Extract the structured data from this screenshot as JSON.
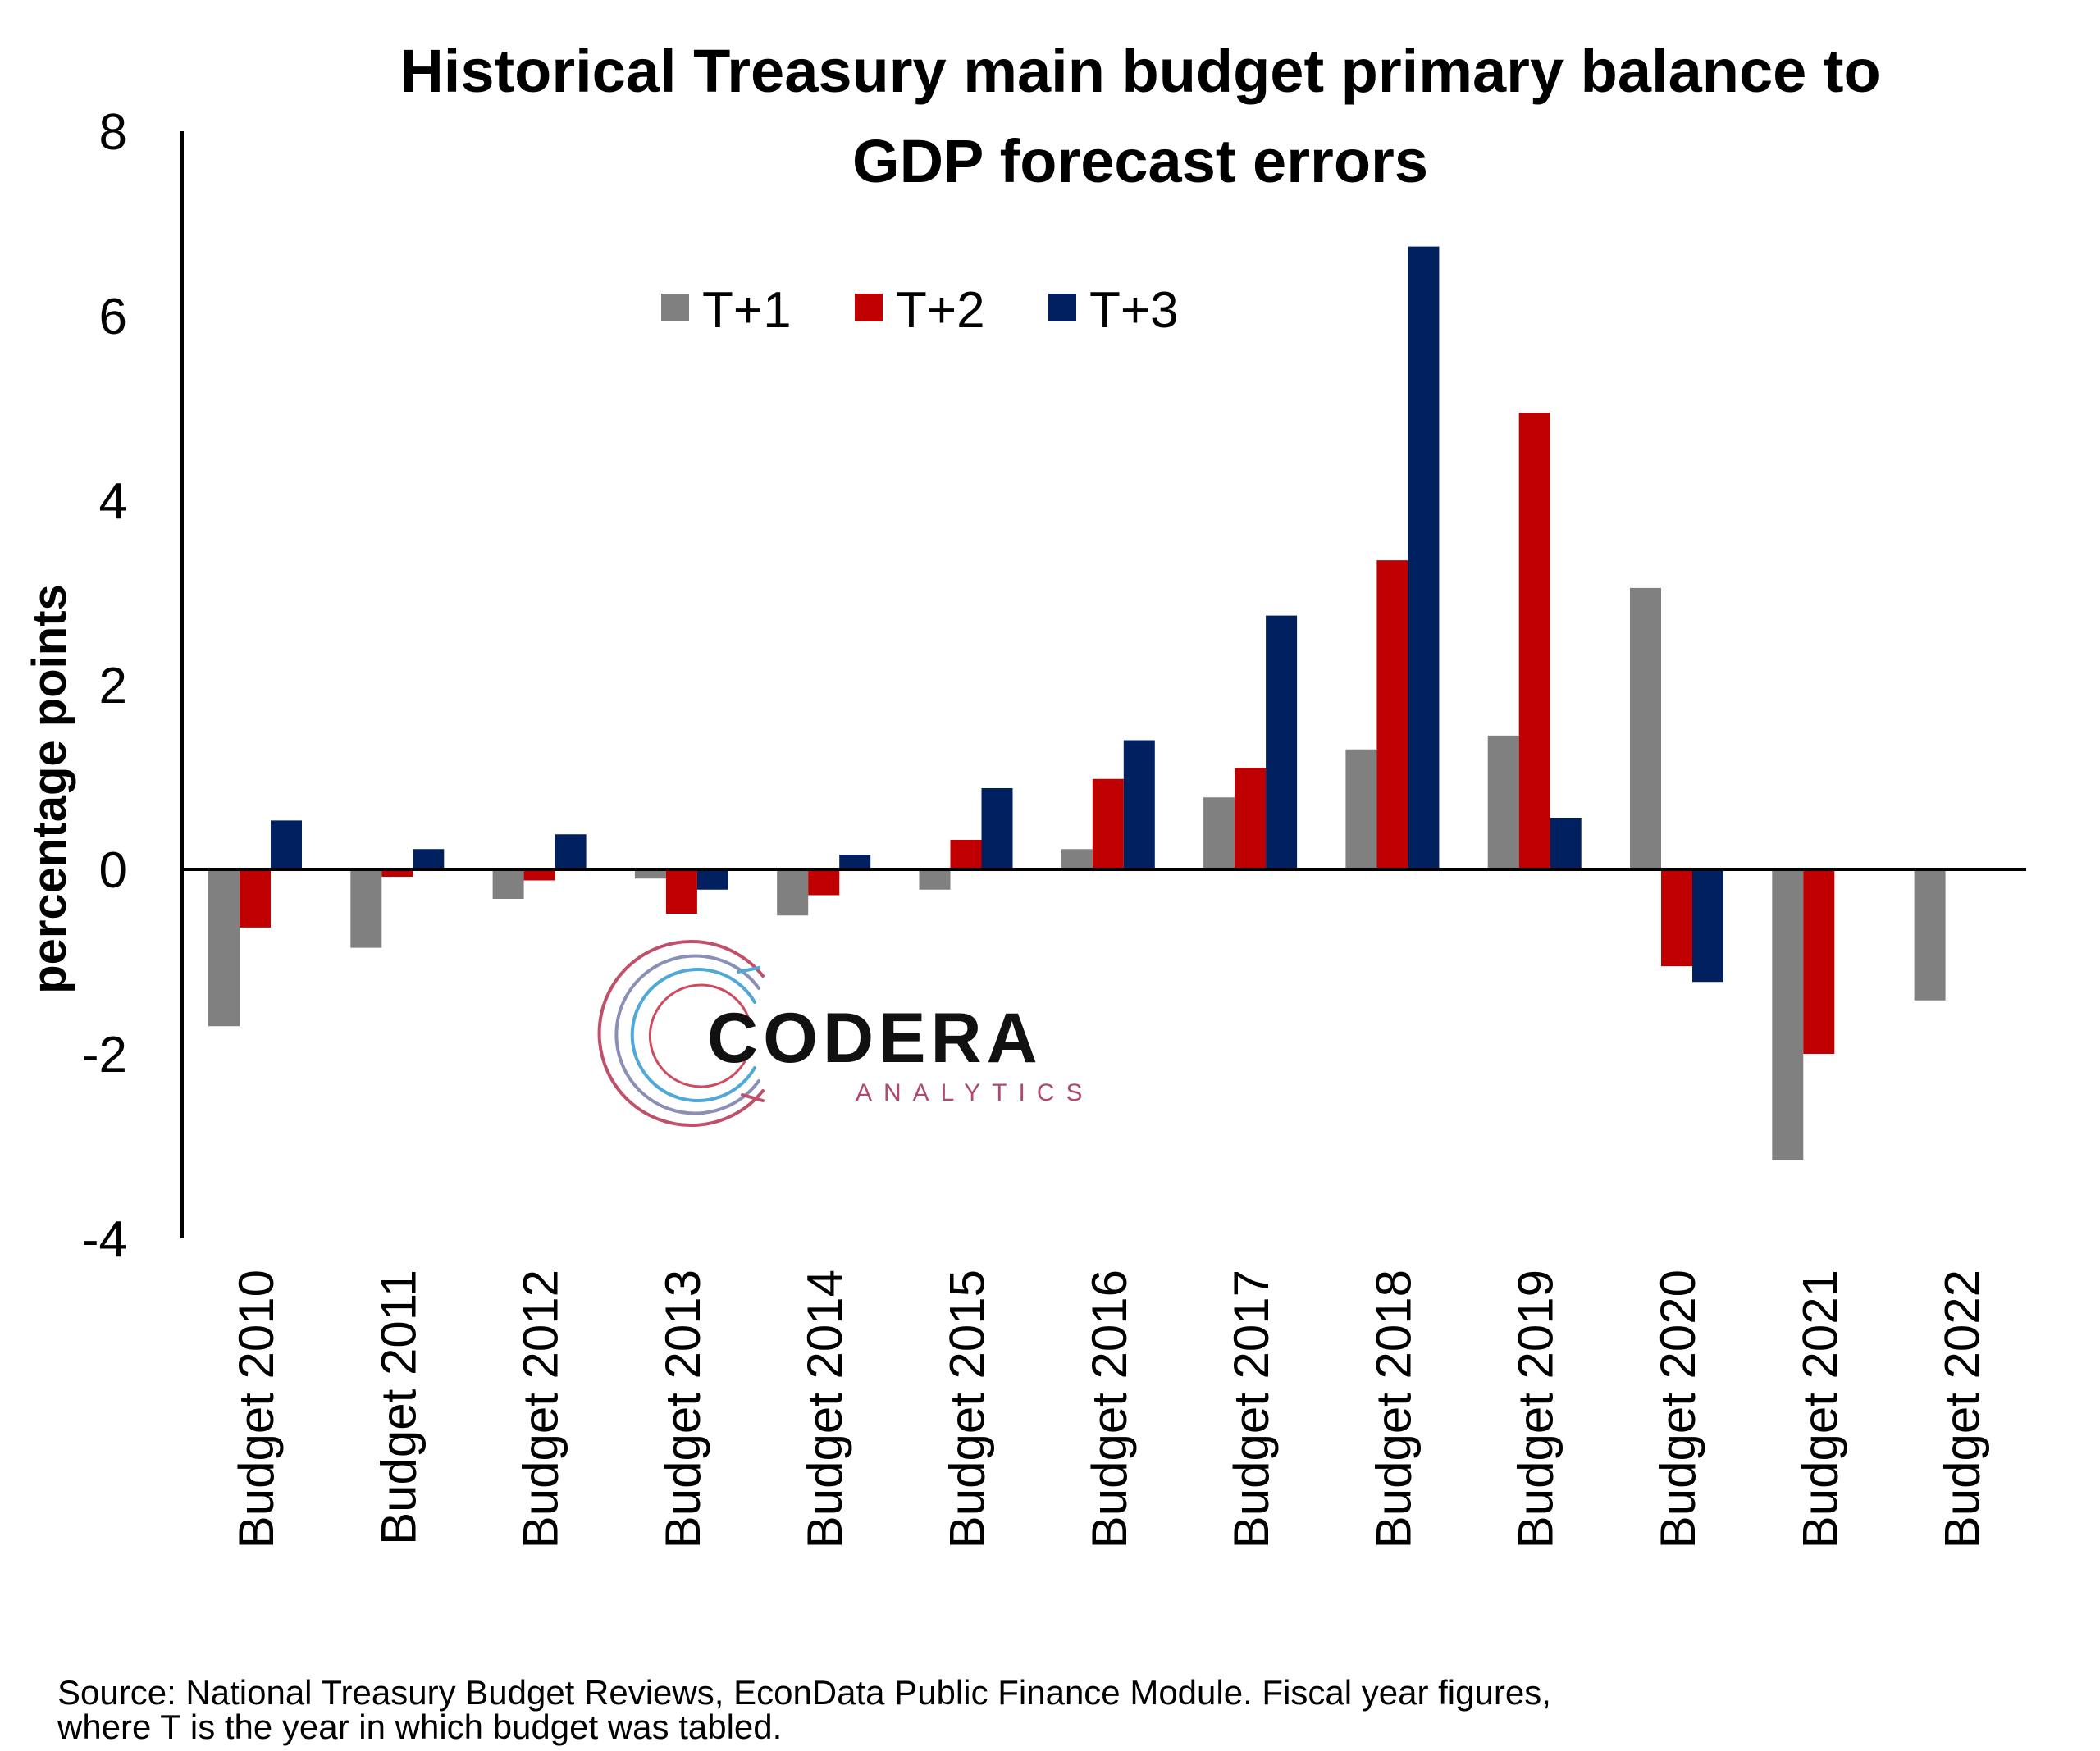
{
  "chart_data": {
    "type": "bar",
    "title": "Historical Treasury main budget primary balance to GDP forecast errors",
    "title_lines": [
      "Historical Treasury main budget primary balance to",
      "GDP forecast errors"
    ],
    "ylabel": "percentage points",
    "xlabel": "",
    "ylim": [
      -4,
      8
    ],
    "yticks": [
      "8",
      "6",
      "4",
      "2",
      "0",
      "-2",
      "-4"
    ],
    "ytick_values": [
      8,
      6,
      4,
      2,
      0,
      -2,
      -4
    ],
    "categories": [
      "Budget 2010",
      "Budget 2011",
      "Budget 2012",
      "Budget 2013",
      "Budget 2014",
      "Budget 2015",
      "Budget 2016",
      "Budget 2017",
      "Budget 2018",
      "Budget 2019",
      "Budget 2020",
      "Budget 2021",
      "Budget 2022"
    ],
    "series": [
      {
        "name": "T+1",
        "color": "#808080",
        "values": [
          -1.7,
          -0.85,
          -0.32,
          -0.1,
          -0.5,
          -0.22,
          0.22,
          0.78,
          1.3,
          1.45,
          3.05,
          -3.15,
          -1.42
        ]
      },
      {
        "name": "T+2",
        "color": "#c00000",
        "values": [
          -0.63,
          -0.08,
          -0.12,
          -0.48,
          -0.28,
          0.32,
          0.98,
          1.1,
          3.35,
          4.95,
          -1.05,
          -2.0,
          null
        ]
      },
      {
        "name": "T+3",
        "color": "#002060",
        "values": [
          0.53,
          0.22,
          0.38,
          -0.22,
          0.16,
          0.88,
          1.4,
          2.75,
          6.75,
          0.56,
          -1.22,
          null,
          null
        ]
      }
    ],
    "legend": "top-center",
    "grid": false
  },
  "logo": {
    "name": "CODERA",
    "tagline": "ANALYTICS"
  },
  "source_lines": [
    "Source: National Treasury Budget Reviews, EconData Public Finance Module. Fiscal year figures,",
    "where T is the year in which budget was tabled."
  ]
}
